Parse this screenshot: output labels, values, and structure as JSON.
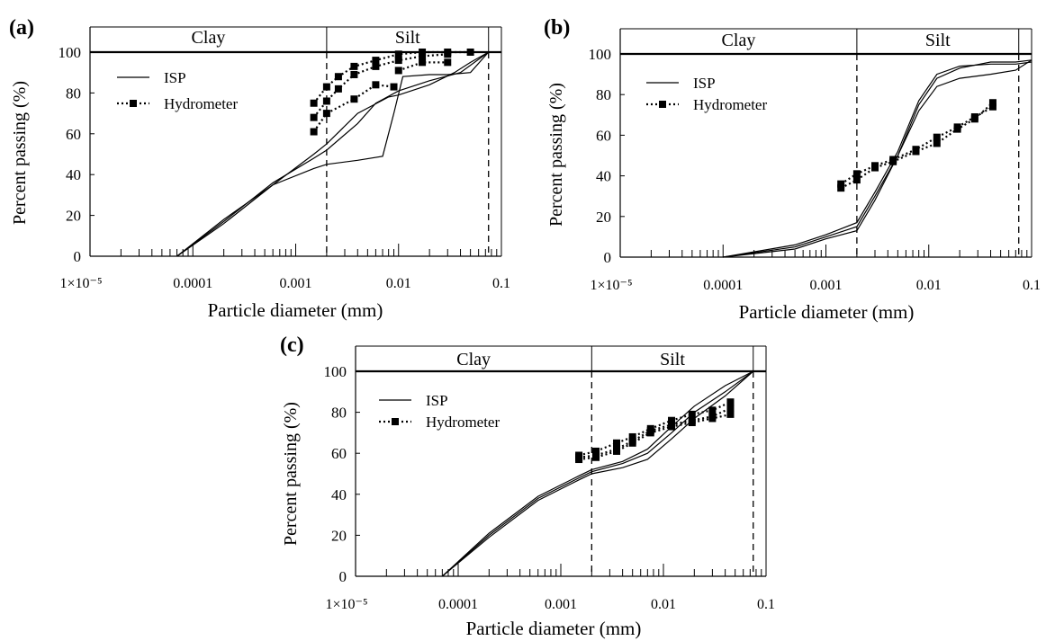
{
  "colors": {
    "line": "#000000",
    "background": "#ffffff"
  },
  "chart_data": [
    {
      "panel_label": "(a)",
      "type": "line",
      "xscale": "log",
      "xlim": [
        1e-05,
        0.1
      ],
      "ylim": [
        0,
        100
      ],
      "xlabel": "Particle diameter (mm)",
      "ylabel": "Percent passing (%)",
      "yticks": [
        "0",
        "20",
        "40",
        "60",
        "80",
        "100"
      ],
      "xticks": [
        "1×10⁻⁵",
        "0.0001",
        "0.001",
        "0.01",
        "0.1"
      ],
      "zones": [
        "Clay",
        "Silt"
      ],
      "boundaries_mm": [
        0.002,
        0.075
      ],
      "legend": {
        "position": "top-left",
        "entries": [
          "ISP",
          "Hydrometer"
        ]
      },
      "series": [
        {
          "name": "ISP",
          "style": "solid",
          "points": [
            [
              7e-05,
              0
            ],
            [
              0.0002,
              18
            ],
            [
              0.0006,
              35
            ],
            [
              0.0015,
              43
            ],
            [
              0.002,
              45
            ],
            [
              0.004,
              47
            ],
            [
              0.007,
              49
            ],
            [
              0.009,
              70
            ],
            [
              0.011,
              88
            ],
            [
              0.02,
              89
            ],
            [
              0.03,
              89
            ],
            [
              0.05,
              90
            ],
            [
              0.075,
              100
            ]
          ]
        },
        {
          "name": "ISP",
          "style": "solid",
          "points": [
            [
              7e-05,
              0
            ],
            [
              0.0002,
              17
            ],
            [
              0.0006,
              36
            ],
            [
              0.0015,
              48
            ],
            [
              0.002,
              52
            ],
            [
              0.004,
              65
            ],
            [
              0.006,
              75
            ],
            [
              0.01,
              81
            ],
            [
              0.02,
              86
            ],
            [
              0.04,
              90
            ],
            [
              0.075,
              100
            ]
          ]
        },
        {
          "name": "ISP",
          "style": "solid",
          "points": [
            [
              7e-05,
              0
            ],
            [
              0.0002,
              16
            ],
            [
              0.0006,
              35
            ],
            [
              0.0015,
              50
            ],
            [
              0.002,
              55
            ],
            [
              0.004,
              70
            ],
            [
              0.008,
              78
            ],
            [
              0.01,
              79
            ],
            [
              0.02,
              84
            ],
            [
              0.035,
              90
            ],
            [
              0.05,
              95
            ],
            [
              0.075,
              100
            ]
          ]
        },
        {
          "name": "Hydrometer",
          "style": "dotted-square",
          "points": [
            [
              0.0015,
              75
            ],
            [
              0.002,
              83
            ],
            [
              0.0026,
              88
            ],
            [
              0.0037,
              93
            ],
            [
              0.006,
              96
            ],
            [
              0.01,
              99
            ],
            [
              0.017,
              100
            ],
            [
              0.03,
              100
            ],
            [
              0.05,
              100
            ]
          ]
        },
        {
          "name": "Hydrometer",
          "style": "dotted-square",
          "points": [
            [
              0.0015,
              68
            ],
            [
              0.002,
              76
            ],
            [
              0.0026,
              82
            ],
            [
              0.0037,
              89
            ],
            [
              0.006,
              93
            ],
            [
              0.01,
              96
            ],
            [
              0.017,
              98
            ],
            [
              0.03,
              99
            ]
          ]
        },
        {
          "name": "Hydrometer",
          "style": "dotted-square",
          "points": [
            [
              0.0015,
              61
            ],
            [
              0.002,
              70
            ],
            [
              0.0037,
              77
            ],
            [
              0.006,
              84
            ],
            [
              0.009,
              83
            ]
          ]
        },
        {
          "name": "Hydrometer",
          "style": "dotted-square",
          "points": [
            [
              0.01,
              91
            ],
            [
              0.017,
              95
            ],
            [
              0.03,
              95
            ]
          ]
        }
      ]
    },
    {
      "panel_label": "(b)",
      "type": "line",
      "xscale": "log",
      "xlim": [
        1e-05,
        0.1
      ],
      "ylim": [
        0,
        100
      ],
      "xlabel": "Particle diameter (mm)",
      "ylabel": "Percent passing (%)",
      "yticks": [
        "0",
        "20",
        "40",
        "60",
        "80",
        "100"
      ],
      "xticks": [
        "1×10⁻⁵",
        "0.0001",
        "0.001",
        "0.01",
        "0.1"
      ],
      "zones": [
        "Clay",
        "Silt"
      ],
      "boundaries_mm": [
        0.002,
        0.075
      ],
      "legend": {
        "position": "top-left",
        "entries": [
          "ISP",
          "Hydrometer"
        ]
      },
      "series": [
        {
          "name": "ISP",
          "style": "solid",
          "points": [
            [
              0.0001,
              0
            ],
            [
              0.0005,
              5
            ],
            [
              0.001,
              10
            ],
            [
              0.002,
              15
            ],
            [
              0.003,
              30
            ],
            [
              0.005,
              50
            ],
            [
              0.008,
              75
            ],
            [
              0.012,
              88
            ],
            [
              0.02,
              93
            ],
            [
              0.04,
              96
            ],
            [
              0.07,
              96
            ],
            [
              0.1,
              97
            ]
          ]
        },
        {
          "name": "ISP",
          "style": "solid",
          "points": [
            [
              0.0001,
              0
            ],
            [
              0.0005,
              4
            ],
            [
              0.001,
              9
            ],
            [
              0.002,
              13
            ],
            [
              0.003,
              28
            ],
            [
              0.005,
              50
            ],
            [
              0.008,
              72
            ],
            [
              0.012,
              84
            ],
            [
              0.02,
              88
            ],
            [
              0.04,
              90
            ],
            [
              0.07,
              92
            ],
            [
              0.1,
              97
            ]
          ]
        },
        {
          "name": "ISP",
          "style": "solid",
          "points": [
            [
              0.0001,
              0
            ],
            [
              0.0005,
              6
            ],
            [
              0.001,
              11
            ],
            [
              0.002,
              17
            ],
            [
              0.003,
              32
            ],
            [
              0.005,
              52
            ],
            [
              0.008,
              77
            ],
            [
              0.012,
              90
            ],
            [
              0.02,
              94
            ],
            [
              0.04,
              95
            ],
            [
              0.07,
              95
            ],
            [
              0.1,
              96
            ]
          ]
        },
        {
          "name": "Hydrometer",
          "style": "dotted-square",
          "points": [
            [
              0.0014,
              36
            ],
            [
              0.002,
              41
            ],
            [
              0.003,
              45
            ],
            [
              0.0045,
              48
            ],
            [
              0.0075,
              53
            ],
            [
              0.012,
              59
            ],
            [
              0.019,
              64
            ],
            [
              0.028,
              69
            ],
            [
              0.042,
              74
            ]
          ]
        },
        {
          "name": "Hydrometer",
          "style": "dotted-square",
          "points": [
            [
              0.0014,
              34
            ],
            [
              0.002,
              38
            ],
            [
              0.003,
              44
            ],
            [
              0.0045,
              47
            ],
            [
              0.0075,
              52
            ],
            [
              0.012,
              56
            ],
            [
              0.019,
              63
            ],
            [
              0.028,
              68
            ],
            [
              0.042,
              76
            ]
          ]
        }
      ]
    },
    {
      "panel_label": "(c)",
      "type": "line",
      "xscale": "log",
      "xlim": [
        1e-05,
        0.1
      ],
      "ylim": [
        0,
        100
      ],
      "xlabel": "Particle diameter (mm)",
      "ylabel": "Percent passing (%)",
      "yticks": [
        "0",
        "20",
        "40",
        "60",
        "80",
        "100"
      ],
      "xticks": [
        "1×10⁻⁵",
        "0.0001",
        "0.001",
        "0.01",
        "0.1"
      ],
      "zones": [
        "Clay",
        "Silt"
      ],
      "boundaries_mm": [
        0.002,
        0.075
      ],
      "legend": {
        "position": "top-left",
        "entries": [
          "ISP",
          "Hydrometer"
        ]
      },
      "series": [
        {
          "name": "ISP",
          "style": "solid",
          "points": [
            [
              7e-05,
              0
            ],
            [
              0.0002,
              20
            ],
            [
              0.0006,
              38
            ],
            [
              0.0015,
              48
            ],
            [
              0.002,
              51
            ],
            [
              0.004,
              55
            ],
            [
              0.007,
              60
            ],
            [
              0.012,
              70
            ],
            [
              0.02,
              80
            ],
            [
              0.04,
              90
            ],
            [
              0.075,
              100
            ]
          ]
        },
        {
          "name": "ISP",
          "style": "solid",
          "points": [
            [
              7e-05,
              0
            ],
            [
              0.0002,
              19
            ],
            [
              0.0006,
              37
            ],
            [
              0.0015,
              47
            ],
            [
              0.002,
              50
            ],
            [
              0.004,
              53
            ],
            [
              0.007,
              57
            ],
            [
              0.012,
              67
            ],
            [
              0.02,
              77
            ],
            [
              0.04,
              88
            ],
            [
              0.075,
              100
            ]
          ]
        },
        {
          "name": "ISP",
          "style": "solid",
          "points": [
            [
              7e-05,
              0
            ],
            [
              0.0002,
              21
            ],
            [
              0.0006,
              39
            ],
            [
              0.0015,
              49
            ],
            [
              0.002,
              52
            ],
            [
              0.004,
              56
            ],
            [
              0.007,
              62
            ],
            [
              0.012,
              73
            ],
            [
              0.02,
              83
            ],
            [
              0.04,
              93
            ],
            [
              0.075,
              100
            ]
          ]
        },
        {
          "name": "Hydrometer",
          "style": "dotted-square",
          "points": [
            [
              0.0015,
              59
            ],
            [
              0.0022,
              61
            ],
            [
              0.0035,
              65
            ],
            [
              0.005,
              68
            ],
            [
              0.0075,
              72
            ],
            [
              0.012,
              76
            ],
            [
              0.019,
              79
            ],
            [
              0.03,
              81
            ],
            [
              0.045,
              85
            ]
          ]
        },
        {
          "name": "Hydrometer",
          "style": "dotted-square",
          "points": [
            [
              0.0015,
              58
            ],
            [
              0.0022,
              59
            ],
            [
              0.0035,
              62
            ],
            [
              0.005,
              66
            ],
            [
              0.0075,
              71
            ],
            [
              0.012,
              74
            ],
            [
              0.019,
              76
            ],
            [
              0.03,
              78
            ],
            [
              0.045,
              82
            ]
          ]
        },
        {
          "name": "Hydrometer",
          "style": "dotted-square",
          "points": [
            [
              0.0015,
              57
            ],
            [
              0.0022,
              58
            ],
            [
              0.0035,
              61
            ],
            [
              0.005,
              65
            ],
            [
              0.0075,
              70
            ],
            [
              0.012,
              73
            ],
            [
              0.019,
              75
            ],
            [
              0.03,
              77
            ],
            [
              0.045,
              79
            ]
          ]
        }
      ]
    }
  ]
}
